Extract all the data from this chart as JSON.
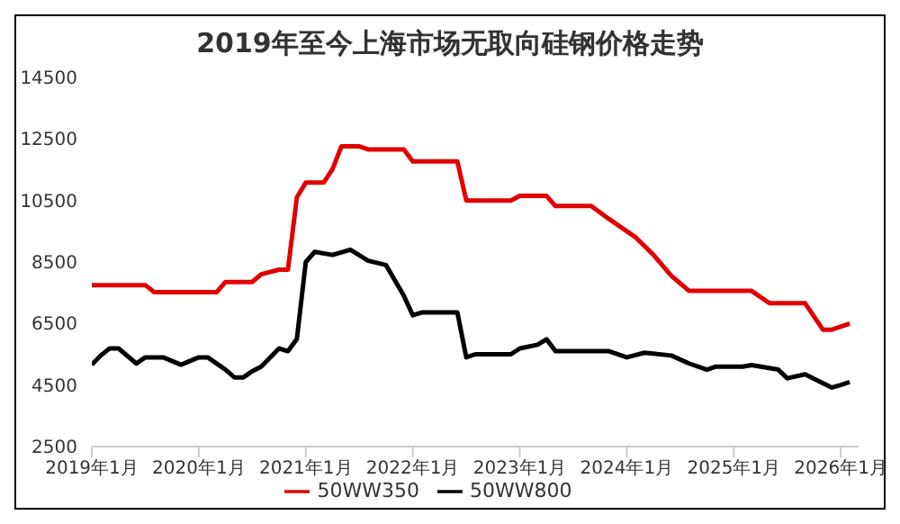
{
  "chart_data": {
    "type": "line",
    "title": "2019年至今上海市场无取向硅钢价格走势",
    "xlim": [
      "2019-01",
      "2026-03"
    ],
    "xticks": [
      {
        "value": "2019-01",
        "label": "2019年1月"
      },
      {
        "value": "2020-01",
        "label": "2020年1月"
      },
      {
        "value": "2021-01",
        "label": "2021年1月"
      },
      {
        "value": "2022-01",
        "label": "2022年1月"
      },
      {
        "value": "2023-01",
        "label": "2023年1月"
      },
      {
        "value": "2024-01",
        "label": "2024年1月"
      },
      {
        "value": "2025-01",
        "label": "2025年1月"
      },
      {
        "value": "2026-01",
        "label": "2026年1月"
      }
    ],
    "ylim": [
      2500,
      14500
    ],
    "yticks": [
      2500,
      4500,
      6500,
      8500,
      10500,
      12500,
      14500
    ],
    "marker": "none",
    "legend": "bottom",
    "series": [
      {
        "name": "50WW800",
        "color": "#000000",
        "x": [
          "2019-01",
          "2019-02",
          "2019-03",
          "2019-04",
          "2019-06",
          "2019-07",
          "2019-09",
          "2019-11",
          "2020-01",
          "2020-02",
          "2020-04",
          "2020-05",
          "2020-06",
          "2020-07",
          "2020-08",
          "2020-10",
          "2020-11",
          "2020-12",
          "2021-01",
          "2021-02",
          "2021-04",
          "2021-06",
          "2021-08",
          "2021-10",
          "2021-12",
          "2022-01",
          "2022-02",
          "2022-06",
          "2022-07",
          "2022-08",
          "2022-12",
          "2023-01",
          "2023-03",
          "2023-04",
          "2023-05",
          "2023-09",
          "2023-11",
          "2024-01",
          "2024-03",
          "2024-06",
          "2024-08",
          "2024-10",
          "2024-11",
          "2025-02",
          "2025-03",
          "2025-06",
          "2025-07",
          "2025-09",
          "2025-10",
          "2025-12",
          "2026-01",
          "2026-02"
        ],
        "values": [
          5160,
          5460,
          5690,
          5690,
          5200,
          5400,
          5400,
          5160,
          5400,
          5400,
          5000,
          4750,
          4750,
          4950,
          5100,
          5690,
          5600,
          6000,
          8500,
          8830,
          8730,
          8900,
          8540,
          8400,
          7400,
          6770,
          6860,
          6860,
          5400,
          5500,
          5500,
          5690,
          5810,
          5990,
          5600,
          5600,
          5600,
          5400,
          5550,
          5460,
          5200,
          5000,
          5100,
          5100,
          5150,
          5000,
          4720,
          4850,
          4700,
          4420,
          4500,
          4600
        ]
      },
      {
        "name": "50WW350",
        "color": "#e00000",
        "x": [
          "2019-01",
          "2019-07",
          "2019-08",
          "2020-03",
          "2020-04",
          "2020-07",
          "2020-08",
          "2020-10",
          "2020-11",
          "2020-12",
          "2021-01",
          "2021-03",
          "2021-04",
          "2021-05",
          "2021-07",
          "2021-08",
          "2021-12",
          "2022-01",
          "2022-06",
          "2022-07",
          "2022-12",
          "2023-01",
          "2023-04",
          "2023-05",
          "2023-09",
          "2023-11",
          "2024-02",
          "2024-04",
          "2024-06",
          "2024-08",
          "2025-03",
          "2025-05",
          "2025-09",
          "2025-11",
          "2025-12",
          "2026-02"
        ],
        "values": [
          7750,
          7750,
          7520,
          7520,
          7850,
          7850,
          8100,
          8250,
          8250,
          10600,
          11080,
          11080,
          11520,
          12260,
          12260,
          12160,
          12160,
          11770,
          11770,
          10500,
          10500,
          10650,
          10650,
          10320,
          10320,
          9900,
          9300,
          8730,
          8050,
          7560,
          7560,
          7160,
          7160,
          6300,
          6300,
          6500
        ]
      }
    ]
  }
}
